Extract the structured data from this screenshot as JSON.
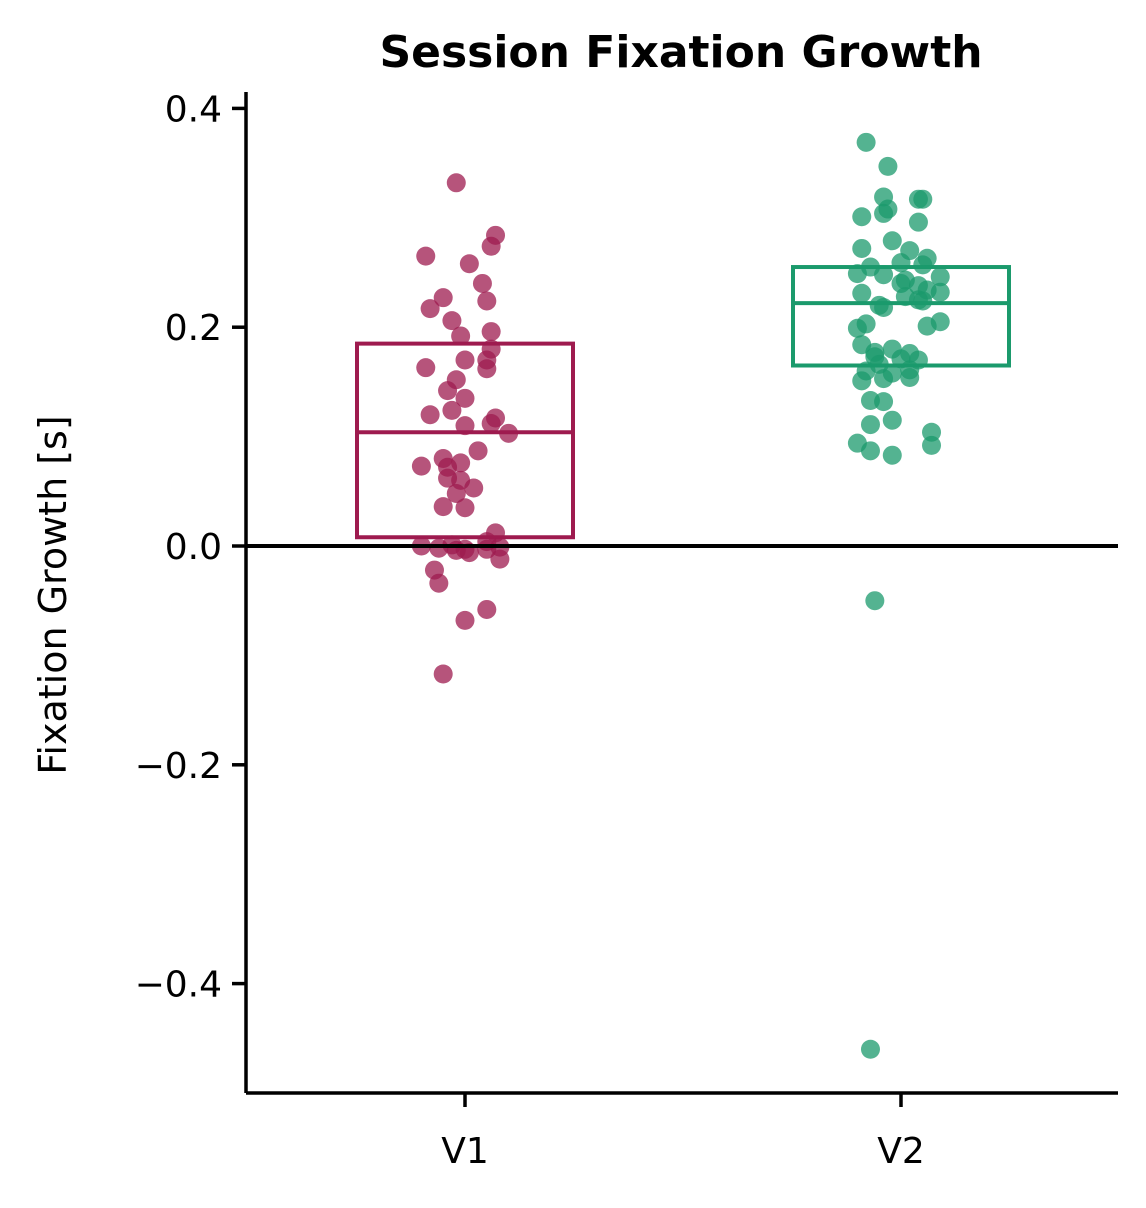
{
  "chart_data": {
    "type": "scatter",
    "title": "Session Fixation Growth",
    "xlabel": "",
    "ylabel": "Fixation Growth [s]",
    "categories": [
      "V1",
      "V2"
    ],
    "ylim": [
      -0.5,
      0.415
    ],
    "yticks": [
      -0.4,
      -0.2,
      0.0,
      0.2,
      0.4
    ],
    "ytick_labels": [
      "−0.4",
      "−0.2",
      "0.0",
      "0.2",
      "0.4"
    ],
    "reference_line_y": 0.0,
    "grid": false,
    "legend": "none",
    "series": [
      {
        "category": "V1",
        "color": "#9E1B4F",
        "box": {
          "q1": 0.008,
          "median": 0.104,
          "q3": 0.185
        },
        "points": [
          {
            "x": -0.02,
            "y": 0.332
          },
          {
            "x": 0.07,
            "y": 0.284
          },
          {
            "x": 0.06,
            "y": 0.274
          },
          {
            "x": -0.09,
            "y": 0.265
          },
          {
            "x": 0.01,
            "y": 0.258
          },
          {
            "x": 0.04,
            "y": 0.24
          },
          {
            "x": -0.05,
            "y": 0.227
          },
          {
            "x": 0.05,
            "y": 0.224
          },
          {
            "x": -0.08,
            "y": 0.217
          },
          {
            "x": -0.03,
            "y": 0.206
          },
          {
            "x": 0.06,
            "y": 0.196
          },
          {
            "x": -0.01,
            "y": 0.192
          },
          {
            "x": 0.06,
            "y": 0.18
          },
          {
            "x": 0.05,
            "y": 0.17
          },
          {
            "x": 0.0,
            "y": 0.17
          },
          {
            "x": -0.09,
            "y": 0.163
          },
          {
            "x": 0.05,
            "y": 0.162
          },
          {
            "x": -0.02,
            "y": 0.152
          },
          {
            "x": -0.04,
            "y": 0.142
          },
          {
            "x": 0.0,
            "y": 0.135
          },
          {
            "x": -0.03,
            "y": 0.124
          },
          {
            "x": -0.08,
            "y": 0.12
          },
          {
            "x": 0.07,
            "y": 0.117
          },
          {
            "x": 0.06,
            "y": 0.112
          },
          {
            "x": 0.0,
            "y": 0.11
          },
          {
            "x": 0.1,
            "y": 0.103
          },
          {
            "x": 0.03,
            "y": 0.087
          },
          {
            "x": -0.05,
            "y": 0.08
          },
          {
            "x": -0.01,
            "y": 0.076
          },
          {
            "x": -0.1,
            "y": 0.073
          },
          {
            "x": -0.04,
            "y": 0.072
          },
          {
            "x": -0.04,
            "y": 0.062
          },
          {
            "x": -0.01,
            "y": 0.06
          },
          {
            "x": 0.02,
            "y": 0.053
          },
          {
            "x": -0.02,
            "y": 0.048
          },
          {
            "x": -0.05,
            "y": 0.036
          },
          {
            "x": 0.0,
            "y": 0.035
          },
          {
            "x": 0.07,
            "y": 0.012
          },
          {
            "x": 0.05,
            "y": 0.004
          },
          {
            "x": -0.03,
            "y": 0.001
          },
          {
            "x": -0.1,
            "y": 0.0
          },
          {
            "x": 0.08,
            "y": -0.001
          },
          {
            "x": -0.06,
            "y": -0.002
          },
          {
            "x": 0.0,
            "y": -0.003
          },
          {
            "x": 0.05,
            "y": -0.003
          },
          {
            "x": -0.02,
            "y": -0.004
          },
          {
            "x": 0.01,
            "y": -0.006
          },
          {
            "x": 0.08,
            "y": -0.012
          },
          {
            "x": -0.07,
            "y": -0.022
          },
          {
            "x": -0.06,
            "y": -0.034
          },
          {
            "x": 0.05,
            "y": -0.058
          },
          {
            "x": 0.0,
            "y": -0.068
          },
          {
            "x": -0.05,
            "y": -0.117
          }
        ]
      },
      {
        "category": "V2",
        "color": "#1B9A6C",
        "box": {
          "q1": 0.165,
          "median": 0.222,
          "q3": 0.255
        },
        "points": [
          {
            "x": -0.08,
            "y": 0.369
          },
          {
            "x": -0.03,
            "y": 0.347
          },
          {
            "x": -0.04,
            "y": 0.319
          },
          {
            "x": 0.04,
            "y": 0.317
          },
          {
            "x": 0.05,
            "y": 0.317
          },
          {
            "x": -0.03,
            "y": 0.308
          },
          {
            "x": -0.04,
            "y": 0.304
          },
          {
            "x": -0.09,
            "y": 0.301
          },
          {
            "x": 0.04,
            "y": 0.296
          },
          {
            "x": -0.02,
            "y": 0.279
          },
          {
            "x": -0.09,
            "y": 0.272
          },
          {
            "x": 0.02,
            "y": 0.27
          },
          {
            "x": 0.06,
            "y": 0.263
          },
          {
            "x": 0.0,
            "y": 0.259
          },
          {
            "x": 0.05,
            "y": 0.257
          },
          {
            "x": -0.07,
            "y": 0.255
          },
          {
            "x": -0.1,
            "y": 0.249
          },
          {
            "x": -0.04,
            "y": 0.248
          },
          {
            "x": 0.09,
            "y": 0.246
          },
          {
            "x": 0.01,
            "y": 0.243
          },
          {
            "x": 0.0,
            "y": 0.24
          },
          {
            "x": 0.04,
            "y": 0.238
          },
          {
            "x": 0.06,
            "y": 0.234
          },
          {
            "x": 0.09,
            "y": 0.232
          },
          {
            "x": -0.09,
            "y": 0.231
          },
          {
            "x": 0.01,
            "y": 0.228
          },
          {
            "x": 0.04,
            "y": 0.225
          },
          {
            "x": 0.05,
            "y": 0.224
          },
          {
            "x": -0.05,
            "y": 0.22
          },
          {
            "x": -0.04,
            "y": 0.218
          },
          {
            "x": 0.09,
            "y": 0.205
          },
          {
            "x": -0.08,
            "y": 0.203
          },
          {
            "x": 0.06,
            "y": 0.201
          },
          {
            "x": -0.1,
            "y": 0.199
          },
          {
            "x": -0.09,
            "y": 0.184
          },
          {
            "x": -0.02,
            "y": 0.18
          },
          {
            "x": -0.06,
            "y": 0.177
          },
          {
            "x": 0.02,
            "y": 0.176
          },
          {
            "x": -0.06,
            "y": 0.173
          },
          {
            "x": 0.0,
            "y": 0.171
          },
          {
            "x": 0.04,
            "y": 0.17
          },
          {
            "x": -0.05,
            "y": 0.166
          },
          {
            "x": 0.02,
            "y": 0.161
          },
          {
            "x": -0.08,
            "y": 0.16
          },
          {
            "x": -0.02,
            "y": 0.158
          },
          {
            "x": 0.02,
            "y": 0.154
          },
          {
            "x": -0.04,
            "y": 0.153
          },
          {
            "x": -0.09,
            "y": 0.151
          },
          {
            "x": -0.07,
            "y": 0.133
          },
          {
            "x": -0.04,
            "y": 0.132
          },
          {
            "x": -0.02,
            "y": 0.115
          },
          {
            "x": -0.07,
            "y": 0.111
          },
          {
            "x": 0.07,
            "y": 0.104
          },
          {
            "x": -0.1,
            "y": 0.094
          },
          {
            "x": 0.07,
            "y": 0.092
          },
          {
            "x": -0.07,
            "y": 0.087
          },
          {
            "x": -0.02,
            "y": 0.083
          },
          {
            "x": -0.06,
            "y": -0.05
          },
          {
            "x": -0.07,
            "y": -0.46
          }
        ]
      }
    ]
  }
}
